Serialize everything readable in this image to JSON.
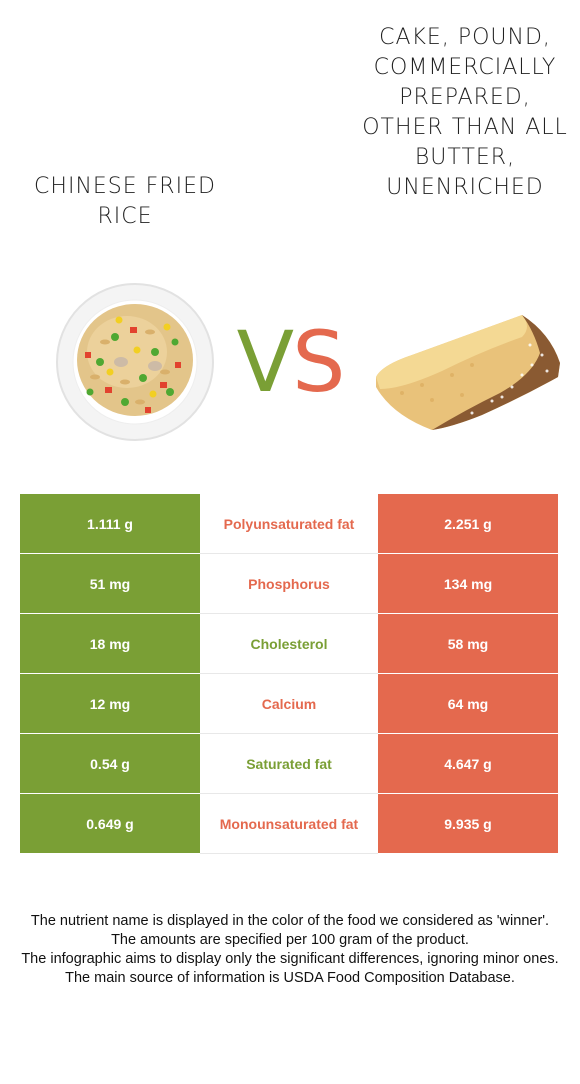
{
  "food_left": {
    "name": "Chinese fried rice",
    "color": "#7a9f35"
  },
  "food_right": {
    "name": "Cake, pound, commercially prepared, other than all butter, unenriched",
    "color": "#e4694e"
  },
  "vs": {
    "v": "V",
    "s": "S"
  },
  "rows": [
    {
      "left": "1.111 g",
      "nutrient": "Polyunsaturated fat",
      "right": "2.251 g",
      "winner_color": "#e4694e"
    },
    {
      "left": "51 mg",
      "nutrient": "Phosphorus",
      "right": "134 mg",
      "winner_color": "#e4694e"
    },
    {
      "left": "18 mg",
      "nutrient": "Cholesterol",
      "right": "58 mg",
      "winner_color": "#7a9f35"
    },
    {
      "left": "12 mg",
      "nutrient": "Calcium",
      "right": "64 mg",
      "winner_color": "#e4694e"
    },
    {
      "left": "0.54 g",
      "nutrient": "Saturated fat",
      "right": "4.647 g",
      "winner_color": "#7a9f35"
    },
    {
      "left": "0.649 g",
      "nutrient": "Monounsaturated fat",
      "right": "9.935 g",
      "winner_color": "#e4694e"
    }
  ],
  "footnote": [
    "The nutrient name is displayed in the color of the food we considered as 'winner'.",
    "The amounts are specified per 100 gram of the product.",
    "The infographic aims to display only the significant differences, ignoring minor ones.",
    "The main source of information is USDA Food Composition Database."
  ]
}
